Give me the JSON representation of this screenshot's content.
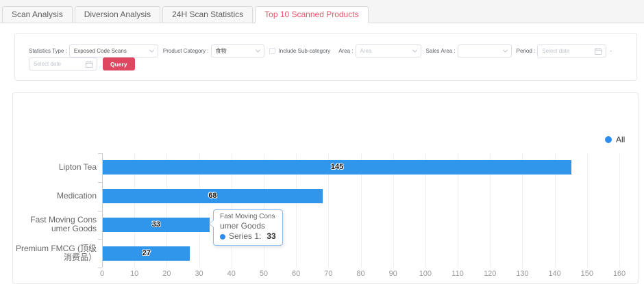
{
  "tabs": [
    {
      "label": "Scan Analysis",
      "active": false
    },
    {
      "label": "Diversion Analysis",
      "active": false
    },
    {
      "label": "24H Scan Statistics",
      "active": false
    },
    {
      "label": "Top 10 Scanned Products",
      "active": true
    }
  ],
  "filters": {
    "statistics_type": {
      "label": "Statistics Type :",
      "value": "Exposed Code Scans"
    },
    "product_category": {
      "label": "Product Category :",
      "value": "食物"
    },
    "include_subcategory": {
      "label": "Include Sub-category",
      "checked": false
    },
    "area": {
      "label": "Area :",
      "placeholder": "Area"
    },
    "sales_area": {
      "label": "Sales Area :",
      "value": ""
    },
    "period": {
      "label": "Period :",
      "start_placeholder": "Select date",
      "separator": "-",
      "end_placeholder": "Select date"
    },
    "query_label": "Query",
    "accent_color": "#df4660"
  },
  "chart_data": {
    "type": "bar",
    "orientation": "horizontal",
    "title": "",
    "categories": [
      "Lipton Tea",
      "Medication",
      "Fast Moving Consumer Goods",
      "Premium FMCG (顶级消费品）"
    ],
    "category_display_lines": [
      [
        "Lipton Tea"
      ],
      [
        "Medication"
      ],
      [
        "Fast Moving Cons",
        "umer Goods"
      ],
      [
        "Premium FMCG (顶级",
        "消费品）"
      ]
    ],
    "series": [
      {
        "name": "Series 1",
        "values": [
          145,
          68,
          33,
          27
        ]
      }
    ],
    "xlim": [
      0,
      160
    ],
    "x_ticks": [
      0,
      10,
      20,
      30,
      40,
      50,
      60,
      70,
      80,
      90,
      100,
      110,
      120,
      130,
      140,
      150,
      160
    ],
    "grid": true,
    "bar_color": "#2f96eb",
    "legend": {
      "label": "All",
      "position": "top-right",
      "dot_color": "#2d8cf0"
    },
    "tooltip": {
      "title_line1": "Fast Moving Cons",
      "title_line2": "umer Goods",
      "series_label": "Series 1:",
      "value": "33",
      "dot_color": "#2d8cf0"
    }
  }
}
